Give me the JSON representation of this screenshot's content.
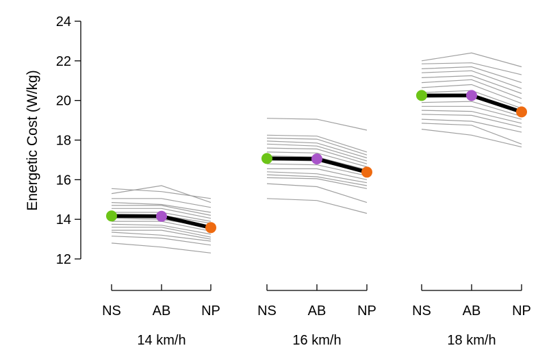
{
  "chart_data": {
    "type": "line",
    "ylabel": "Energetic Cost (W/kg)",
    "ylim": [
      12,
      24
    ],
    "yticks": [
      12,
      14,
      16,
      18,
      20,
      22,
      24
    ],
    "conditions": [
      "NS",
      "AB",
      "NP"
    ],
    "groups": [
      {
        "label": "14 km/h",
        "mean": [
          14.17,
          14.15,
          13.58
        ],
        "subjects": [
          [
            15.55,
            15.4,
            15.05
          ],
          [
            15.3,
            15.7,
            14.85
          ],
          [
            15.05,
            15.05,
            14.6
          ],
          [
            14.85,
            14.75,
            14.35
          ],
          [
            14.7,
            14.7,
            14.2
          ],
          [
            14.55,
            14.55,
            14.05
          ],
          [
            14.35,
            14.35,
            13.9
          ],
          [
            14.2,
            14.2,
            13.8
          ],
          [
            14.05,
            14.0,
            13.6
          ],
          [
            13.9,
            13.9,
            13.4
          ],
          [
            13.75,
            13.7,
            13.25
          ],
          [
            13.6,
            13.6,
            13.1
          ],
          [
            13.45,
            13.45,
            13.0
          ],
          [
            13.35,
            13.2,
            12.9
          ],
          [
            13.15,
            13.05,
            12.7
          ],
          [
            12.8,
            12.6,
            12.3
          ]
        ]
      },
      {
        "label": "16 km/h",
        "mean": [
          17.07,
          17.05,
          16.38
        ],
        "subjects": [
          [
            19.1,
            19.05,
            18.5
          ],
          [
            18.25,
            18.2,
            17.4
          ],
          [
            18.1,
            18.05,
            17.25
          ],
          [
            17.95,
            17.85,
            17.1
          ],
          [
            17.8,
            17.7,
            16.95
          ],
          [
            17.6,
            17.55,
            16.8
          ],
          [
            17.4,
            17.35,
            16.65
          ],
          [
            17.2,
            17.15,
            16.5
          ],
          [
            17.0,
            16.95,
            16.35
          ],
          [
            16.8,
            16.75,
            16.2
          ],
          [
            16.55,
            16.55,
            16.0
          ],
          [
            16.4,
            16.3,
            15.85
          ],
          [
            16.25,
            16.15,
            15.7
          ],
          [
            16.1,
            16.05,
            15.55
          ],
          [
            15.8,
            15.65,
            14.85
          ],
          [
            15.05,
            14.95,
            14.3
          ]
        ]
      },
      {
        "label": "18 km/h",
        "mean": [
          20.25,
          20.25,
          19.42
        ],
        "subjects": [
          [
            22.0,
            22.4,
            21.7
          ],
          [
            21.85,
            21.9,
            21.3
          ],
          [
            21.6,
            21.7,
            20.9
          ],
          [
            21.4,
            21.5,
            20.6
          ],
          [
            21.15,
            21.25,
            20.35
          ],
          [
            20.9,
            21.05,
            20.1
          ],
          [
            20.65,
            20.8,
            19.85
          ],
          [
            20.4,
            20.5,
            19.6
          ],
          [
            20.15,
            20.2,
            19.4
          ],
          [
            19.9,
            19.95,
            19.2
          ],
          [
            19.7,
            19.7,
            19.05
          ],
          [
            19.5,
            19.45,
            18.85
          ],
          [
            19.3,
            19.25,
            18.65
          ],
          [
            19.05,
            18.95,
            18.4
          ],
          [
            18.85,
            18.75,
            17.8
          ],
          [
            18.55,
            18.25,
            17.65
          ]
        ]
      }
    ],
    "colors": {
      "NS": "#6cc417",
      "AB": "#a855c9",
      "NP": "#ee6a10",
      "mean_line": "#000000",
      "subject_line": "#a0a0a0"
    }
  }
}
